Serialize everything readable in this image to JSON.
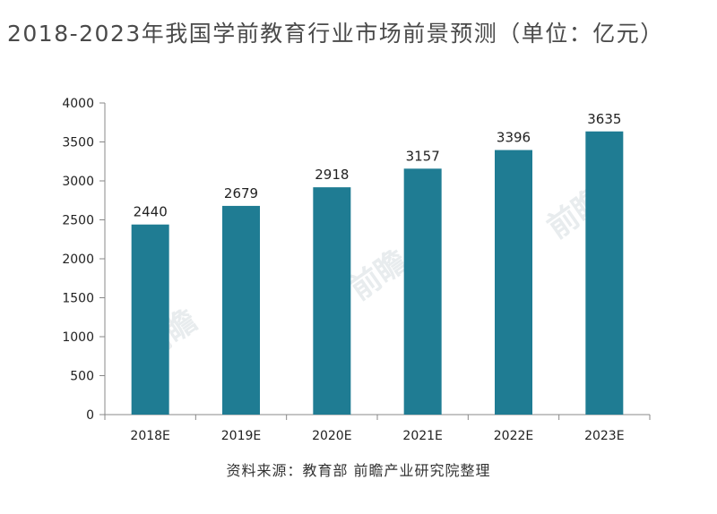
{
  "title": "2018-2023年我国学前教育行业市场前景预测（单位：亿元）",
  "source": "资料来源：教育部 前瞻产业研究院整理",
  "colors": {
    "bar": "#1f7c93",
    "axis": "#888888",
    "text": "#222222"
  },
  "chart_data": {
    "type": "bar",
    "title": "2018-2023年我国学前教育行业市场前景预测（单位：亿元）",
    "xlabel": "",
    "ylabel": "",
    "categories": [
      "2018E",
      "2019E",
      "2020E",
      "2021E",
      "2022E",
      "2023E"
    ],
    "values": [
      2440,
      2679,
      2918,
      3157,
      3396,
      3635
    ],
    "data_labels": [
      "2440",
      "2679",
      "2918",
      "3157",
      "3396",
      "3635"
    ],
    "ylim": [
      0,
      4000
    ],
    "yticks": [
      0,
      500,
      1000,
      1500,
      2000,
      2500,
      3000,
      3500,
      4000
    ],
    "grid": false,
    "legend": "none"
  }
}
